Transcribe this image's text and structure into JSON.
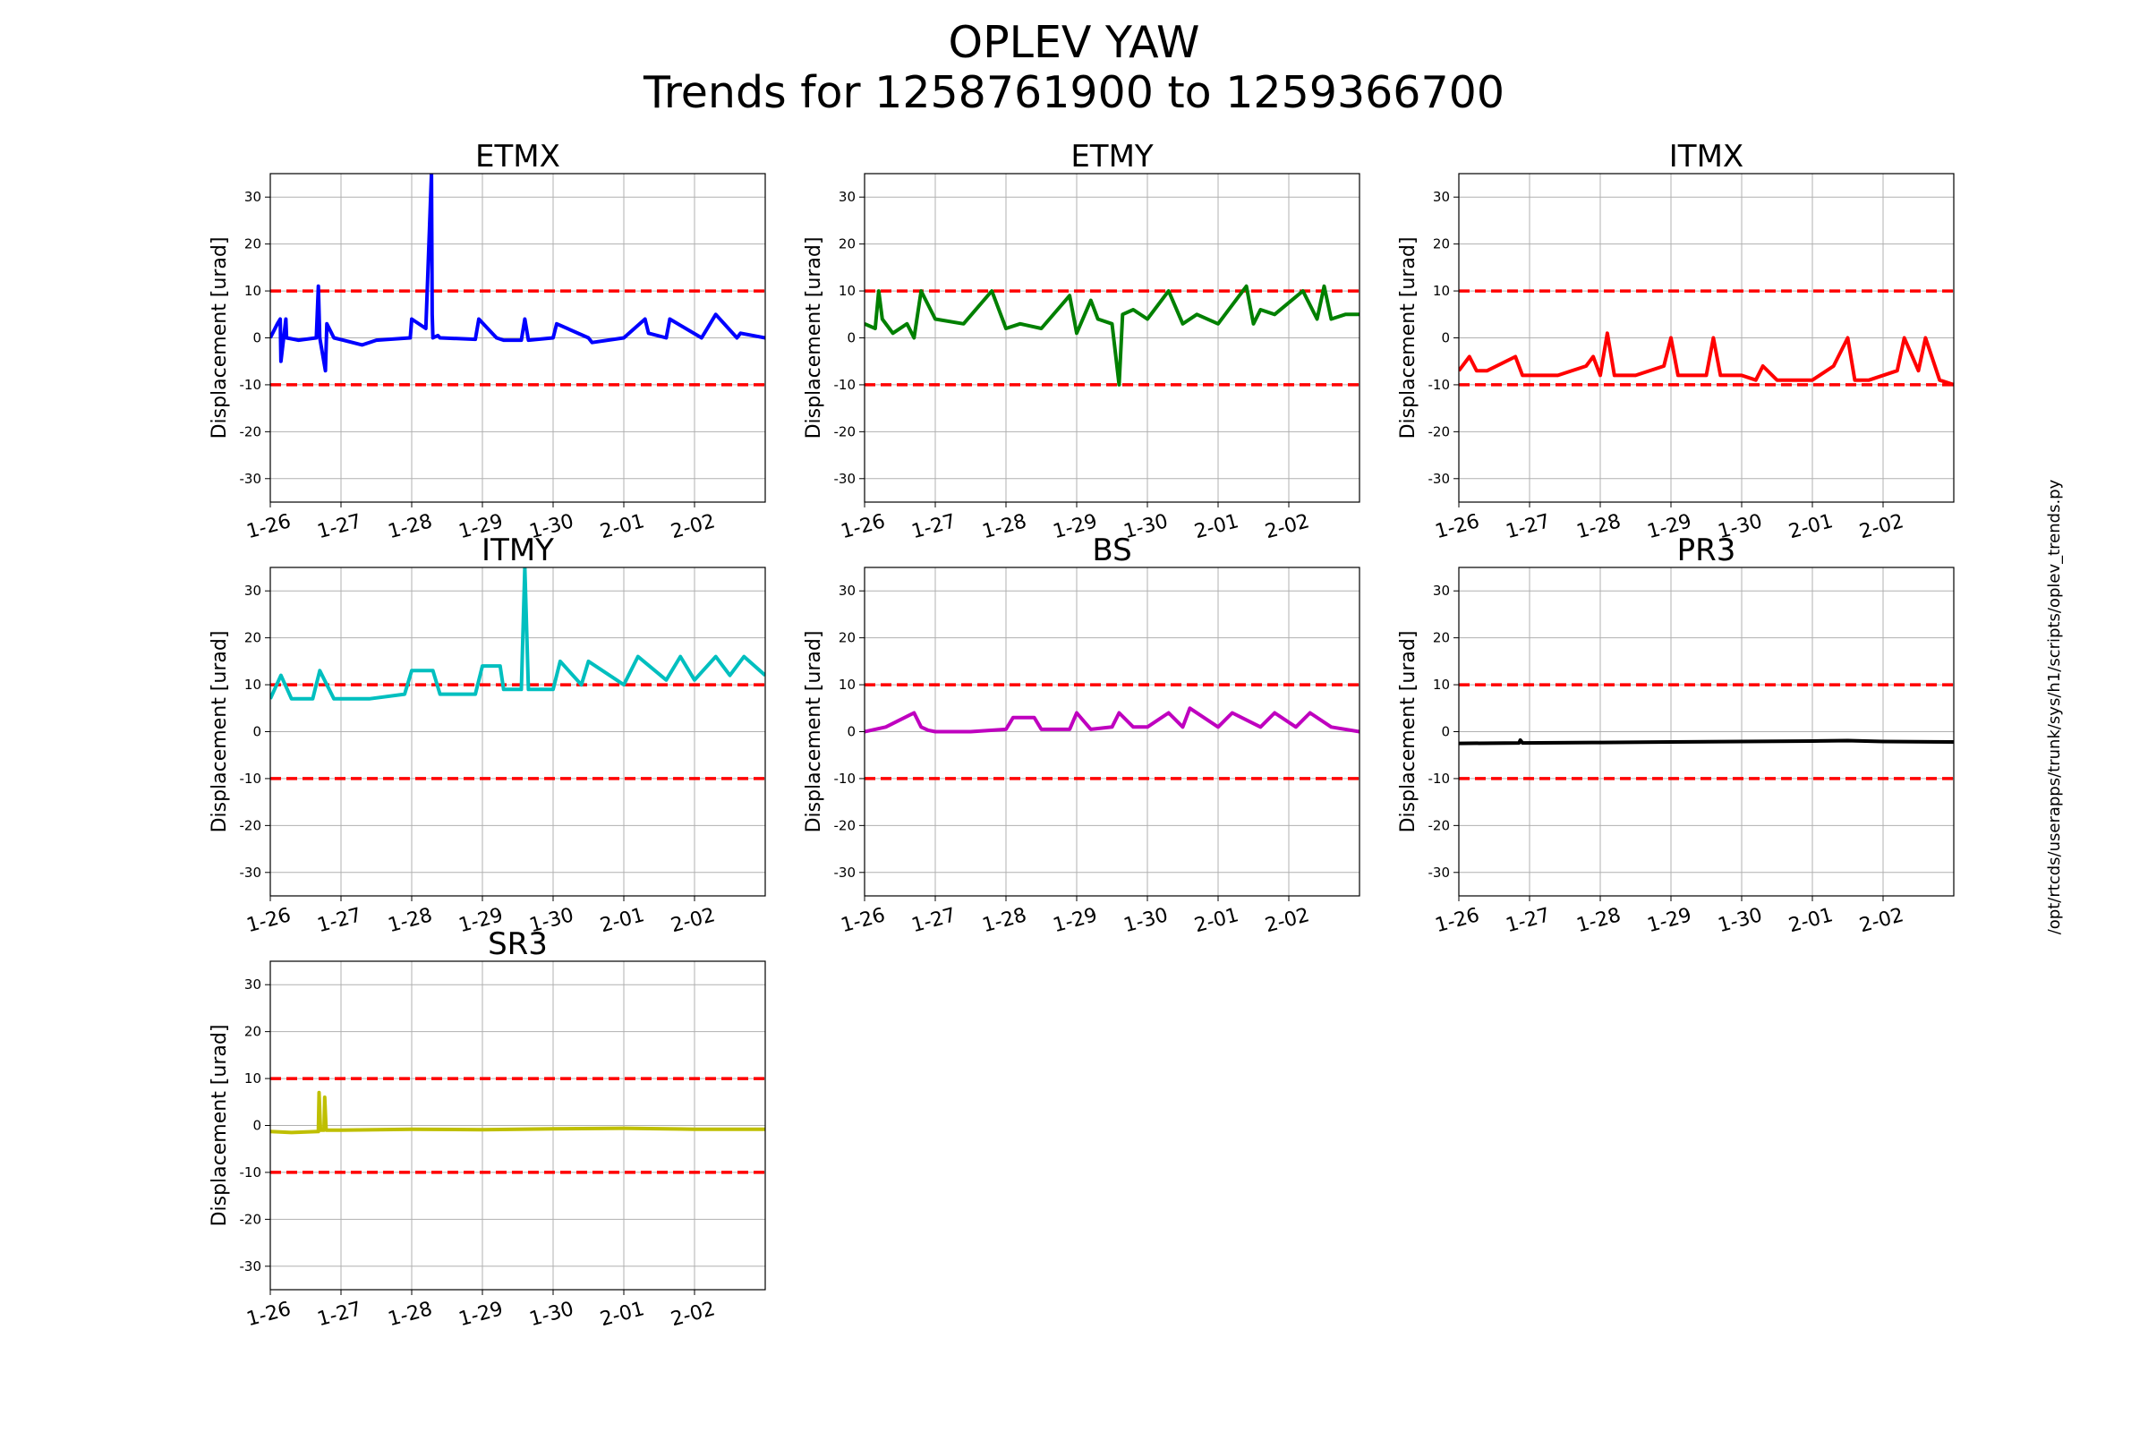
{
  "figure": {
    "title_line1": "OPLEV YAW",
    "title_line2": "Trends for 1258761900 to 1259366700",
    "side_note": "/opt/rtcds/userapps/trunk/sys/h1/scripts/oplev_trends.py"
  },
  "colors": {
    "threshold": "#ff0000",
    "grid": "#b0b0b0"
  },
  "chart_data": [
    {
      "type": "line",
      "title": "ETMX",
      "ylabel": "Displacement [urad]",
      "ylim": [
        -35,
        35
      ],
      "xlim": [
        0,
        7
      ],
      "grid": true,
      "yticks": [
        -30,
        -20,
        -10,
        0,
        10,
        20,
        30
      ],
      "xticks": [
        0,
        1,
        2,
        3,
        4,
        5,
        6
      ],
      "xtick_labels": [
        "1-26",
        "1-27",
        "1-28",
        "1-29",
        "1-30",
        "2-01",
        "2-02"
      ],
      "thresholds": [
        10,
        -10
      ],
      "series": [
        {
          "color": "#0000ff",
          "x": [
            0,
            0.1,
            0.14,
            0.15,
            0.22,
            0.23,
            0.4,
            0.65,
            0.68,
            0.7,
            0.78,
            0.8,
            0.9,
            1.3,
            1.5,
            1.98,
            2.0,
            2.2,
            2.28,
            2.29,
            2.3,
            2.37,
            2.4,
            2.9,
            2.95,
            3.2,
            3.3,
            3.55,
            3.6,
            3.65,
            4.0,
            4.05,
            4.5,
            4.55,
            5.0,
            5.3,
            5.35,
            5.6,
            5.65,
            6.1,
            6.3,
            6.6,
            6.65,
            7.0
          ],
          "y": [
            0,
            3,
            4,
            -5,
            4,
            0,
            -0.5,
            0,
            11,
            0,
            -7,
            3,
            0,
            -1.5,
            -0.5,
            0,
            4,
            2,
            35,
            5,
            0,
            0.5,
            0,
            -0.3,
            4,
            0,
            -0.5,
            -0.5,
            4,
            -0.5,
            0,
            3,
            0,
            -1,
            0,
            4,
            1,
            0,
            4,
            0,
            5,
            0,
            1,
            0
          ]
        }
      ]
    },
    {
      "type": "line",
      "title": "ETMY",
      "ylabel": "Displacement [urad]",
      "ylim": [
        -35,
        35
      ],
      "xlim": [
        0,
        7
      ],
      "grid": true,
      "yticks": [
        -30,
        -20,
        -10,
        0,
        10,
        20,
        30
      ],
      "xticks": [
        0,
        1,
        2,
        3,
        4,
        5,
        6
      ],
      "xtick_labels": [
        "1-26",
        "1-27",
        "1-28",
        "1-29",
        "1-30",
        "2-01",
        "2-02"
      ],
      "thresholds": [
        10,
        -10
      ],
      "series": [
        {
          "color": "#008000",
          "x": [
            0,
            0.15,
            0.2,
            0.25,
            0.4,
            0.6,
            0.7,
            0.8,
            1.0,
            1.4,
            1.8,
            2.0,
            2.2,
            2.5,
            2.9,
            3.0,
            3.2,
            3.3,
            3.5,
            3.6,
            3.65,
            3.8,
            4.0,
            4.3,
            4.5,
            4.7,
            5.0,
            5.4,
            5.5,
            5.6,
            5.8,
            6.2,
            6.4,
            6.5,
            6.6,
            6.8,
            7.0
          ],
          "y": [
            3,
            2,
            10,
            4,
            1,
            3,
            0,
            10,
            4,
            3,
            10,
            2,
            3,
            2,
            9,
            1,
            8,
            4,
            3,
            -10,
            5,
            6,
            4,
            10,
            3,
            5,
            3,
            11,
            3,
            6,
            5,
            10,
            4,
            11,
            4,
            5,
            5
          ]
        }
      ]
    },
    {
      "type": "line",
      "title": "ITMX",
      "ylabel": "Displacement [urad]",
      "ylim": [
        -35,
        35
      ],
      "xlim": [
        0,
        7
      ],
      "grid": true,
      "yticks": [
        -30,
        -20,
        -10,
        0,
        10,
        20,
        30
      ],
      "xticks": [
        0,
        1,
        2,
        3,
        4,
        5,
        6
      ],
      "xtick_labels": [
        "1-26",
        "1-27",
        "1-28",
        "1-29",
        "1-30",
        "2-01",
        "2-02"
      ],
      "thresholds": [
        10,
        -10
      ],
      "series": [
        {
          "color": "#ff0000",
          "x": [
            0,
            0.15,
            0.25,
            0.4,
            0.8,
            0.9,
            1.0,
            1.4,
            1.8,
            1.9,
            2.0,
            2.1,
            2.2,
            2.5,
            2.9,
            3.0,
            3.1,
            3.5,
            3.6,
            3.7,
            4.0,
            4.2,
            4.3,
            4.5,
            5.0,
            5.3,
            5.5,
            5.6,
            5.8,
            6.2,
            6.3,
            6.5,
            6.6,
            6.8,
            7.0
          ],
          "y": [
            -7,
            -4,
            -7,
            -7,
            -4,
            -8,
            -8,
            -8,
            -6,
            -4,
            -8,
            1,
            -8,
            -8,
            -6,
            0,
            -8,
            -8,
            0,
            -8,
            -8,
            -9,
            -6,
            -9,
            -9,
            -6,
            0,
            -9,
            -9,
            -7,
            0,
            -7,
            0,
            -9,
            -10
          ]
        }
      ]
    },
    {
      "type": "line",
      "title": "ITMY",
      "ylabel": "Displacement [urad]",
      "ylim": [
        -35,
        35
      ],
      "xlim": [
        0,
        7
      ],
      "grid": true,
      "yticks": [
        -30,
        -20,
        -10,
        0,
        10,
        20,
        30
      ],
      "xticks": [
        0,
        1,
        2,
        3,
        4,
        5,
        6
      ],
      "xtick_labels": [
        "1-26",
        "1-27",
        "1-28",
        "1-29",
        "1-30",
        "2-01",
        "2-02"
      ],
      "thresholds": [
        10,
        -10
      ],
      "series": [
        {
          "color": "#00bfbf",
          "x": [
            0,
            0.15,
            0.3,
            0.6,
            0.7,
            0.9,
            1.4,
            1.9,
            2.0,
            2.3,
            2.4,
            2.9,
            3.0,
            3.25,
            3.3,
            3.55,
            3.6,
            3.65,
            4.0,
            4.1,
            4.4,
            4.5,
            5.0,
            5.2,
            5.6,
            5.8,
            6.0,
            6.3,
            6.5,
            6.7,
            7.0
          ],
          "y": [
            7,
            12,
            7,
            7,
            13,
            7,
            7,
            8,
            13,
            13,
            8,
            8,
            14,
            14,
            9,
            9,
            35,
            9,
            9,
            15,
            10,
            15,
            10,
            16,
            11,
            16,
            11,
            16,
            12,
            16,
            12
          ]
        }
      ]
    },
    {
      "type": "line",
      "title": "BS",
      "ylabel": "Displacement [urad]",
      "ylim": [
        -35,
        35
      ],
      "xlim": [
        0,
        7
      ],
      "grid": true,
      "yticks": [
        -30,
        -20,
        -10,
        0,
        10,
        20,
        30
      ],
      "xticks": [
        0,
        1,
        2,
        3,
        4,
        5,
        6
      ],
      "xtick_labels": [
        "1-26",
        "1-27",
        "1-28",
        "1-29",
        "1-30",
        "2-01",
        "2-02"
      ],
      "thresholds": [
        10,
        -10
      ],
      "series": [
        {
          "color": "#bf00bf",
          "x": [
            0,
            0.3,
            0.7,
            0.8,
            0.9,
            1.0,
            1.5,
            2.0,
            2.1,
            2.4,
            2.5,
            2.9,
            3.0,
            3.2,
            3.5,
            3.6,
            3.8,
            4.0,
            4.3,
            4.5,
            4.6,
            5.0,
            5.2,
            5.6,
            5.8,
            6.1,
            6.3,
            6.6,
            7.0
          ],
          "y": [
            0,
            1,
            4,
            1,
            0.3,
            0,
            0,
            0.5,
            3,
            3,
            0.5,
            0.5,
            4,
            0.5,
            1,
            4,
            1,
            1,
            4,
            1,
            5,
            1,
            4,
            1,
            4,
            1,
            4,
            1,
            0
          ]
        }
      ]
    },
    {
      "type": "line",
      "title": "PR3",
      "ylabel": "Displacement [urad]",
      "ylim": [
        -35,
        35
      ],
      "xlim": [
        0,
        7
      ],
      "grid": true,
      "yticks": [
        -30,
        -20,
        -10,
        0,
        10,
        20,
        30
      ],
      "xticks": [
        0,
        1,
        2,
        3,
        4,
        5,
        6
      ],
      "xtick_labels": [
        "1-26",
        "1-27",
        "1-28",
        "1-29",
        "1-30",
        "2-01",
        "2-02"
      ],
      "thresholds": [
        10,
        -10
      ],
      "series": [
        {
          "color": "#000000",
          "x": [
            0,
            0.85,
            0.87,
            0.9,
            2.0,
            3.0,
            4.0,
            5.0,
            5.5,
            6.0,
            7.0
          ],
          "y": [
            -2.5,
            -2.4,
            -1.8,
            -2.4,
            -2.3,
            -2.2,
            -2.1,
            -2.0,
            -1.9,
            -2.1,
            -2.2
          ]
        }
      ]
    },
    {
      "type": "line",
      "title": "SR3",
      "ylabel": "Displacement [urad]",
      "ylim": [
        -35,
        35
      ],
      "xlim": [
        0,
        7
      ],
      "grid": true,
      "yticks": [
        -30,
        -20,
        -10,
        0,
        10,
        20,
        30
      ],
      "xticks": [
        0,
        1,
        2,
        3,
        4,
        5,
        6
      ],
      "xtick_labels": [
        "1-26",
        "1-27",
        "1-28",
        "1-29",
        "1-30",
        "2-01",
        "2-02"
      ],
      "thresholds": [
        10,
        -10
      ],
      "series": [
        {
          "color": "#bfbf00",
          "x": [
            0,
            0.3,
            0.68,
            0.69,
            0.71,
            0.76,
            0.77,
            0.79,
            1.0,
            2.0,
            3.0,
            4.0,
            5.0,
            6.0,
            7.0
          ],
          "y": [
            -1.3,
            -1.5,
            -1.3,
            7,
            -1,
            -1,
            6,
            -1,
            -1,
            -0.8,
            -0.9,
            -0.7,
            -0.6,
            -0.8,
            -0.8
          ]
        }
      ]
    }
  ]
}
